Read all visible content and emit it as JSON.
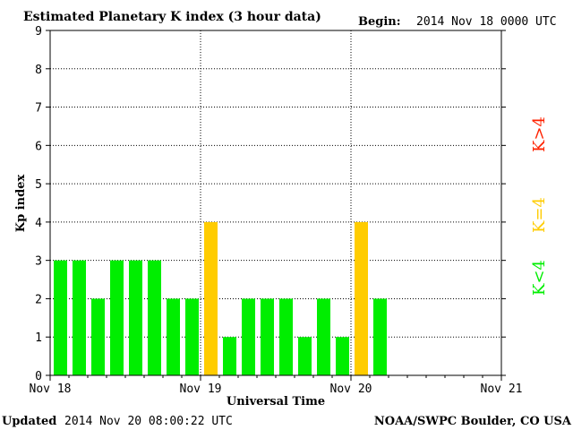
{
  "chart_data": {
    "type": "bar",
    "title": "Estimated Planetary K index (3 hour data)",
    "begin_label": "Begin:",
    "begin_value": "2014 Nov 18 0000 UTC",
    "xlabel": "Universal Time",
    "ylabel": "Kp index",
    "ylim": [
      0,
      9
    ],
    "yticks": [
      "0",
      "1",
      "2",
      "3",
      "4",
      "5",
      "6",
      "7",
      "8",
      "9"
    ],
    "xticks": [
      "Nov 18",
      "Nov 19",
      "Nov 20",
      "Nov 21"
    ],
    "bars_per_day": 8,
    "total_slots": 24,
    "values": [
      3,
      3,
      2,
      3,
      3,
      3,
      2,
      2,
      4,
      1,
      2,
      2,
      2,
      1,
      2,
      1,
      4,
      2
    ],
    "grid": true,
    "colors": {
      "low": "#00ee00",
      "mid": "#ffcc00",
      "high": "#ff2200"
    },
    "legend": [
      {
        "label": "K<4",
        "color": "#00ee00"
      },
      {
        "label": "K=4",
        "color": "#ffcc00"
      },
      {
        "label": "K>4",
        "color": "#ff2200"
      }
    ]
  },
  "footer": {
    "updated_label": "Updated",
    "updated_value": "2014 Nov 20 08:00:22 UTC",
    "source": "NOAA/SWPC Boulder, CO USA"
  }
}
